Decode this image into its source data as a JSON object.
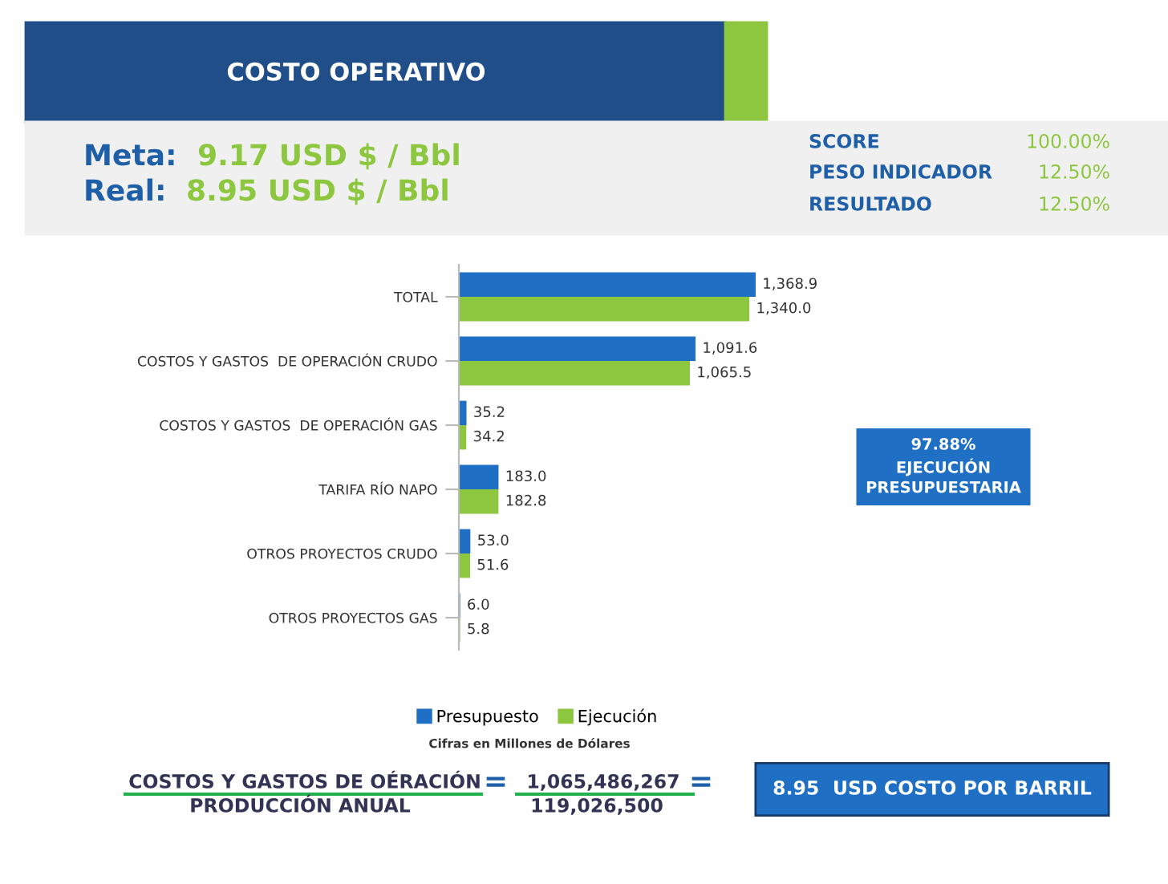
{
  "chart_data": {
    "type": "bar",
    "orientation": "horizontal",
    "title": "COSTO OPERATIVO",
    "categories": [
      "TOTAL",
      "COSTOS Y GASTOS  DE OPERACIÓN CRUDO",
      "COSTOS Y GASTOS  DE OPERACIÓN GAS",
      "TARIFA RÍO NAPO",
      "OTROS PROYECTOS CRUDO",
      "OTROS PROYECTOS GAS"
    ],
    "series": [
      {
        "name": "Presupuesto",
        "color": "#1f6fc5",
        "values": [
          1368.9,
          1091.6,
          35.2,
          183.0,
          53.0,
          6.0
        ],
        "value_labels": [
          "1,368.9",
          "1,091.6",
          "35.2",
          "183.0",
          "53.0",
          "6.0"
        ]
      },
      {
        "name": "Ejecución",
        "color": "#8dc63f",
        "values": [
          1340.0,
          1065.5,
          34.2,
          182.8,
          51.6,
          5.8
        ],
        "value_labels": [
          "1,340.0",
          "1,065.5",
          "34.2",
          "182.8",
          "51.6",
          "5.8"
        ]
      }
    ],
    "legend": "bottom",
    "grid": false,
    "annotations": [
      "Meta:",
      "9.17 USD $ / Bbl",
      "Real:",
      "8.95 USD $ / Bbl",
      "SCORE",
      "100.00%",
      "PESO INDICADOR",
      "12.50%",
      "RESULTADO",
      "12.50%",
      "97.88%\nEJECUCIÓN\nPRESUPUESTARIA",
      "Cifras en Millones de Dólares",
      "COSTOS Y GASTOS DE OÉRACIÓN",
      "=",
      "1,065,486,267",
      "PRODUCCIÓN ANUAL",
      "119,026,500",
      "=",
      "8.95  USD COSTO POR BARRIL"
    ]
  }
}
